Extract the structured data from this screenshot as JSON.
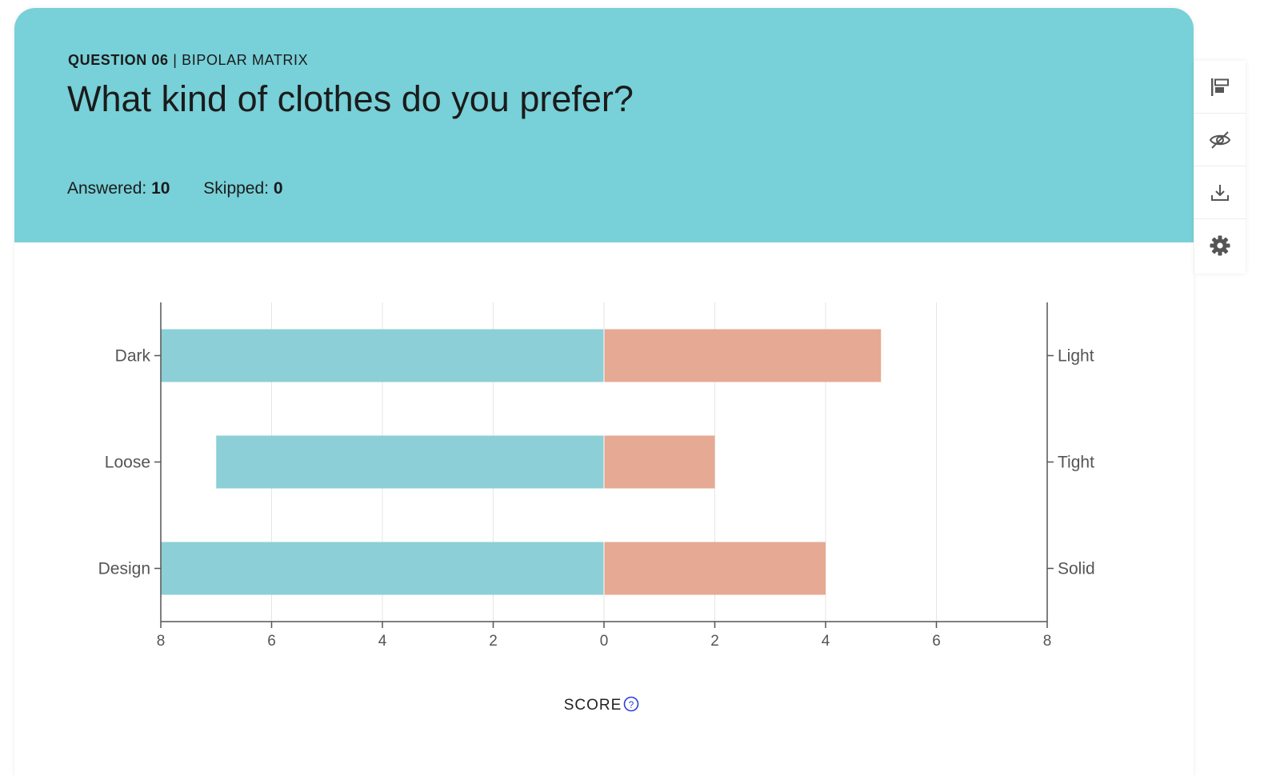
{
  "question": {
    "number_label": "QUESTION 06",
    "separator": "|",
    "type_label": "BIPOLAR MATRIX",
    "title": "What kind of clothes do you prefer?"
  },
  "stats": {
    "answered_label": "Answered:",
    "answered_value": "10",
    "skipped_label": "Skipped:",
    "skipped_value": "0"
  },
  "colors": {
    "header_bg": "#78d0d8",
    "left_bar": "#8dcfd6",
    "right_bar": "#e6a994"
  },
  "toolbar": {
    "icons": [
      "layout-icon",
      "hide-icon",
      "download-icon",
      "settings-icon"
    ]
  },
  "chart_data": {
    "type": "bar",
    "orientation": "horizontal-diverging",
    "categories_left": [
      "Dark",
      "Loose",
      "Design"
    ],
    "categories_right": [
      "Light",
      "Tight",
      "Solid"
    ],
    "series": [
      {
        "side": "left",
        "values": [
          8,
          7,
          8
        ]
      },
      {
        "side": "right",
        "values": [
          5,
          2,
          4
        ]
      }
    ],
    "x_ticks": [
      "8",
      "6",
      "4",
      "2",
      "0",
      "2",
      "4",
      "6",
      "8"
    ],
    "xlim": [
      -8,
      8
    ],
    "xlabel": "SCORE",
    "grid": true
  }
}
